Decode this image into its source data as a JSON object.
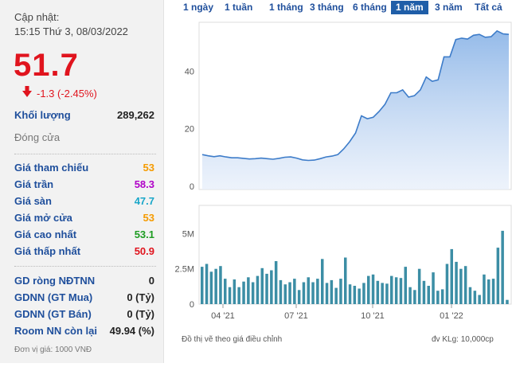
{
  "quote": {
    "updated_label": "Cập nhật:",
    "updated_time": "15:15 Thứ 3, 08/03/2022",
    "price": "51.7",
    "change": "-1.3 (-2.45%)",
    "volume_label": "Khối lượng",
    "volume_value": "289,262",
    "status": "Đóng cửa"
  },
  "price_stats": [
    {
      "label": "Giá tham chiếu",
      "value": "53",
      "color": "#f59b00"
    },
    {
      "label": "Giá trần",
      "value": "58.3",
      "color": "#b000c8"
    },
    {
      "label": "Giá sàn",
      "value": "47.7",
      "color": "#1aa7c9"
    },
    {
      "label": "Giá mở cửa",
      "value": "53",
      "color": "#f59b00"
    },
    {
      "label": "Giá cao nhất",
      "value": "53.1",
      "color": "#1e9c22"
    },
    {
      "label": "Giá thấp nhất",
      "value": "50.9",
      "color": "#e0141e"
    }
  ],
  "foreign_stats": [
    {
      "label": "GD ròng NĐTNN",
      "value": "0"
    },
    {
      "label": "GDNN (GT Mua)",
      "value": "0 (Tỷ)"
    },
    {
      "label": "GDNN (GT Bán)",
      "value": "0 (Tỷ)"
    },
    {
      "label": "Room NN còn lại",
      "value": "49.94 (%)"
    }
  ],
  "unit_note": "Đơn vị giá: 1000 VNĐ",
  "range_tabs": [
    {
      "label": "1 ngày",
      "active": false
    },
    {
      "label": "1 tuần",
      "active": false
    },
    {
      "label": "1 tháng",
      "active": false
    },
    {
      "label": "3 tháng",
      "active": false
    },
    {
      "label": "6 tháng",
      "active": false
    },
    {
      "label": "1 năm",
      "active": true
    },
    {
      "label": "3 năm",
      "active": false
    },
    {
      "label": "Tất cả",
      "active": false
    }
  ],
  "chart_note": "Đồ thị vẽ theo giá điều chỉnh",
  "volume_unit_note": "đv KLg: 10,000cp",
  "colors": {
    "accent": "#1f5ea8",
    "line": "#3d7cc9",
    "bar": "#3c8ea5",
    "down": "#e0141e"
  },
  "chart_data": [
    {
      "type": "area",
      "x_ticks": [
        "04 '21",
        "07 '21",
        "10 '21",
        "01 '22"
      ],
      "y_ticks": [
        0,
        20,
        40
      ],
      "ylim": [
        0,
        57
      ],
      "grid": false,
      "values": [
        11,
        10.6,
        10.3,
        10.6,
        10.2,
        9.9,
        9.9,
        9.7,
        9.5,
        9.6,
        9.8,
        9.6,
        9.4,
        9.7,
        10.1,
        10.2,
        9.8,
        9.2,
        9.0,
        9.1,
        9.6,
        10.2,
        10.5,
        11.0,
        13,
        15.5,
        18.5,
        24.5,
        23.5,
        24,
        26,
        28.5,
        32.5,
        32.5,
        33.5,
        31,
        31.5,
        33.5,
        38,
        36.5,
        37,
        45,
        45,
        51,
        51.5,
        51.2,
        52.5,
        52.8,
        51.8,
        52,
        54,
        53,
        52.8
      ]
    },
    {
      "type": "bar",
      "x_ticks": [
        "04 '21",
        "07 '21",
        "10 '21",
        "01 '22"
      ],
      "y_ticks": [
        "0",
        "2.5M",
        "5M"
      ],
      "ylim": [
        0,
        7000000
      ],
      "grid": false,
      "values": [
        2650000,
        2850000,
        2300000,
        2500000,
        2700000,
        1800000,
        1200000,
        1750000,
        1200000,
        1600000,
        1900000,
        1550000,
        2000000,
        2550000,
        2150000,
        2400000,
        3050000,
        1700000,
        1400000,
        1550000,
        1800000,
        1000000,
        1550000,
        1900000,
        1550000,
        1800000,
        3200000,
        1500000,
        1700000,
        1150000,
        1800000,
        3300000,
        1400000,
        1300000,
        1100000,
        1500000,
        2000000,
        2100000,
        1650000,
        1500000,
        1450000,
        2000000,
        1900000,
        1850000,
        2650000,
        1200000,
        1000000,
        2500000,
        1650000,
        1300000,
        2250000,
        950000,
        1050000,
        2850000,
        3900000,
        3000000,
        2500000,
        2700000,
        1200000,
        950000,
        650000,
        2100000,
        1750000,
        1800000,
        4000000,
        5200000,
        300000
      ]
    }
  ]
}
